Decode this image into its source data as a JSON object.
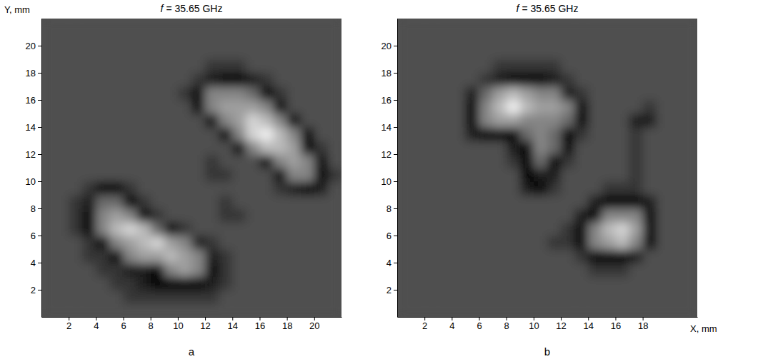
{
  "chart_data": [
    {
      "type": "heatmap",
      "title": "f = 35.65 GHz",
      "y_label": "Y, mm",
      "annotations": [
        "a"
      ],
      "xlim": [
        0,
        22
      ],
      "ylim": [
        0,
        22
      ],
      "zlim": [
        0,
        9
      ],
      "xticks": [
        2,
        4,
        6,
        8,
        10,
        12,
        14,
        16,
        18,
        20
      ],
      "yticks": [
        2,
        4,
        6,
        8,
        10,
        12,
        14,
        16,
        18,
        20
      ],
      "x": [
        0.5,
        1.5,
        2.5,
        3.5,
        4.5,
        5.5,
        6.5,
        7.5,
        8.5,
        9.5,
        10.5,
        11.5,
        12.5,
        13.5,
        14.5,
        15.5,
        16.5,
        17.5,
        18.5,
        19.5,
        20.5,
        21.5
      ],
      "y": [
        0.5,
        1.5,
        2.5,
        3.5,
        4.5,
        5.5,
        6.5,
        7.5,
        8.5,
        9.5,
        10.5,
        11.5,
        12.5,
        13.5,
        14.5,
        15.5,
        16.5,
        17.5,
        18.5,
        19.5,
        20.5,
        21.5
      ],
      "z": [
        [
          3,
          3,
          3,
          3,
          3,
          3,
          3,
          3,
          3,
          3,
          3,
          3,
          3,
          3,
          3,
          3,
          3,
          3,
          3,
          3,
          3,
          3
        ],
        [
          3,
          3,
          3,
          3,
          3,
          3,
          2,
          2,
          2,
          2,
          2,
          2,
          2,
          3,
          3,
          3,
          3,
          3,
          3,
          3,
          3,
          3
        ],
        [
          3,
          3,
          3,
          3,
          3,
          2,
          2,
          1,
          0,
          0,
          0,
          0,
          1,
          2,
          3,
          3,
          3,
          3,
          3,
          3,
          3,
          3
        ],
        [
          3,
          3,
          3,
          3,
          2,
          2,
          1,
          1,
          0,
          5,
          6,
          5,
          0,
          2,
          3,
          3,
          3,
          3,
          3,
          3,
          3,
          3
        ],
        [
          3,
          3,
          3,
          2,
          2,
          0,
          5,
          6,
          6,
          7,
          6,
          5,
          1,
          2,
          3,
          3,
          3,
          3,
          3,
          3,
          3,
          3
        ],
        [
          3,
          3,
          3,
          2,
          0,
          5,
          6,
          7,
          8,
          6,
          5,
          1,
          2,
          3,
          3,
          3,
          3,
          3,
          3,
          3,
          3,
          3
        ],
        [
          3,
          3,
          2,
          0,
          5,
          7,
          8,
          7,
          4,
          0,
          2,
          3,
          3,
          3,
          3,
          3,
          3,
          3,
          3,
          3,
          3,
          3
        ],
        [
          3,
          3,
          2,
          0,
          5,
          6,
          5,
          0,
          2,
          3,
          3,
          3,
          3,
          2,
          2,
          3,
          3,
          3,
          3,
          3,
          3,
          3
        ],
        [
          3,
          3,
          2,
          1,
          4,
          4,
          0,
          2,
          3,
          3,
          3,
          3,
          3,
          2,
          3,
          3,
          3,
          3,
          3,
          3,
          3,
          3
        ],
        [
          3,
          3,
          3,
          2,
          0,
          0,
          2,
          3,
          3,
          3,
          3,
          3,
          3,
          3,
          3,
          3,
          3,
          2,
          1,
          0,
          1,
          3
        ],
        [
          3,
          3,
          3,
          3,
          3,
          3,
          3,
          3,
          3,
          3,
          3,
          3,
          2,
          2,
          3,
          3,
          3,
          0,
          5,
          5,
          0,
          2
        ],
        [
          3,
          3,
          3,
          3,
          3,
          3,
          3,
          3,
          3,
          3,
          3,
          3,
          2,
          3,
          3,
          3,
          0,
          5,
          6,
          5,
          0,
          3
        ],
        [
          3,
          3,
          3,
          3,
          3,
          3,
          3,
          3,
          3,
          3,
          3,
          3,
          3,
          3,
          0,
          5,
          7,
          7,
          6,
          0,
          2,
          3
        ],
        [
          3,
          3,
          3,
          3,
          3,
          3,
          3,
          3,
          3,
          3,
          3,
          3,
          3,
          0,
          5,
          8,
          9,
          7,
          5,
          0,
          3,
          3
        ],
        [
          3,
          3,
          3,
          3,
          3,
          3,
          3,
          3,
          3,
          3,
          3,
          3,
          0,
          5,
          6,
          8,
          7,
          5,
          0,
          3,
          3,
          3
        ],
        [
          3,
          3,
          3,
          3,
          3,
          3,
          3,
          3,
          3,
          3,
          3,
          0,
          5,
          6,
          6,
          6,
          5,
          0,
          3,
          3,
          3,
          3
        ],
        [
          3,
          3,
          3,
          3,
          3,
          3,
          3,
          3,
          3,
          3,
          2,
          0,
          5,
          5,
          5,
          4,
          0,
          2,
          3,
          3,
          3,
          3
        ],
        [
          3,
          3,
          3,
          3,
          3,
          3,
          3,
          3,
          3,
          3,
          3,
          2,
          1,
          0,
          0,
          1,
          2,
          3,
          3,
          3,
          3,
          3
        ],
        [
          3,
          3,
          3,
          3,
          3,
          3,
          3,
          3,
          3,
          3,
          3,
          3,
          2,
          2,
          2,
          3,
          3,
          3,
          3,
          3,
          3,
          3
        ],
        [
          3,
          3,
          3,
          3,
          3,
          3,
          3,
          3,
          3,
          3,
          3,
          3,
          3,
          3,
          3,
          3,
          3,
          3,
          3,
          3,
          3,
          3
        ],
        [
          3,
          3,
          3,
          3,
          3,
          3,
          3,
          3,
          3,
          3,
          3,
          3,
          3,
          3,
          3,
          3,
          3,
          3,
          3,
          3,
          3,
          3
        ],
        [
          3,
          3,
          3,
          3,
          3,
          3,
          3,
          3,
          3,
          3,
          3,
          3,
          3,
          3,
          3,
          3,
          3,
          3,
          3,
          3,
          3,
          3
        ]
      ]
    },
    {
      "type": "heatmap",
      "title": "f = 35.65 GHz",
      "x_label": "X, mm",
      "annotations": [
        "b"
      ],
      "xlim": [
        0,
        22
      ],
      "ylim": [
        0,
        22
      ],
      "zlim": [
        0,
        9
      ],
      "xticks": [
        2,
        4,
        6,
        8,
        10,
        12,
        14,
        16,
        18
      ],
      "yticks": [
        2,
        4,
        6,
        8,
        10,
        12,
        14,
        16,
        18,
        20
      ],
      "x": [
        0.5,
        1.5,
        2.5,
        3.5,
        4.5,
        5.5,
        6.5,
        7.5,
        8.5,
        9.5,
        10.5,
        11.5,
        12.5,
        13.5,
        14.5,
        15.5,
        16.5,
        17.5,
        18.5,
        19.5,
        20.5,
        21.5
      ],
      "y": [
        0.5,
        1.5,
        2.5,
        3.5,
        4.5,
        5.5,
        6.5,
        7.5,
        8.5,
        9.5,
        10.5,
        11.5,
        12.5,
        13.5,
        14.5,
        15.5,
        16.5,
        17.5,
        18.5,
        19.5,
        20.5,
        21.5
      ],
      "z": [
        [
          3,
          3,
          3,
          3,
          3,
          3,
          3,
          3,
          3,
          3,
          3,
          3,
          3,
          3,
          3,
          3,
          3,
          3,
          3,
          3,
          3,
          3
        ],
        [
          3,
          3,
          3,
          3,
          3,
          3,
          3,
          3,
          3,
          3,
          3,
          3,
          3,
          3,
          3,
          3,
          3,
          3,
          3,
          3,
          3,
          3
        ],
        [
          3,
          3,
          3,
          3,
          3,
          3,
          3,
          3,
          3,
          3,
          3,
          3,
          3,
          3,
          3,
          3,
          3,
          3,
          3,
          3,
          3,
          3
        ],
        [
          3,
          3,
          3,
          3,
          3,
          3,
          3,
          3,
          3,
          3,
          3,
          3,
          3,
          3,
          2,
          2,
          2,
          3,
          3,
          3,
          3,
          3
        ],
        [
          3,
          3,
          3,
          3,
          3,
          3,
          3,
          3,
          3,
          3,
          3,
          3,
          3,
          2,
          0,
          0,
          0,
          1,
          3,
          3,
          3,
          3
        ],
        [
          3,
          3,
          3,
          3,
          3,
          3,
          3,
          3,
          3,
          3,
          3,
          2,
          2,
          0,
          5,
          6,
          7,
          5,
          0,
          3,
          3,
          3
        ],
        [
          3,
          3,
          3,
          3,
          3,
          3,
          3,
          3,
          3,
          3,
          3,
          3,
          2,
          0,
          5,
          7,
          8,
          6,
          0,
          3,
          3,
          3
        ],
        [
          3,
          3,
          3,
          3,
          3,
          3,
          3,
          3,
          3,
          3,
          3,
          3,
          3,
          1,
          0,
          5,
          5,
          5,
          0,
          3,
          3,
          3
        ],
        [
          3,
          3,
          3,
          3,
          3,
          3,
          3,
          3,
          3,
          3,
          3,
          3,
          3,
          3,
          1,
          0,
          0,
          0,
          1,
          3,
          3,
          3
        ],
        [
          3,
          3,
          3,
          3,
          3,
          3,
          3,
          3,
          3,
          1,
          0,
          2,
          3,
          3,
          3,
          2,
          2,
          2,
          3,
          3,
          3,
          3
        ],
        [
          3,
          3,
          3,
          3,
          3,
          3,
          3,
          3,
          3,
          0,
          1,
          1,
          3,
          3,
          3,
          3,
          3,
          2,
          3,
          3,
          3,
          3
        ],
        [
          3,
          3,
          3,
          3,
          3,
          3,
          3,
          3,
          2,
          0,
          4,
          0,
          2,
          3,
          3,
          3,
          3,
          2,
          3,
          3,
          3,
          3
        ],
        [
          3,
          3,
          3,
          3,
          3,
          3,
          3,
          3,
          1,
          0,
          5,
          4,
          0,
          3,
          3,
          3,
          3,
          2,
          3,
          3,
          3,
          3
        ],
        [
          3,
          3,
          3,
          3,
          3,
          1,
          0,
          0,
          0,
          4,
          5,
          4,
          0,
          2,
          3,
          3,
          3,
          2,
          3,
          3,
          3,
          3
        ],
        [
          3,
          3,
          3,
          3,
          3,
          0,
          5,
          6,
          6,
          5,
          5,
          5,
          4,
          0,
          3,
          3,
          3,
          1,
          1,
          3,
          3,
          3
        ],
        [
          3,
          3,
          3,
          3,
          3,
          0,
          5,
          7,
          9,
          7,
          6,
          6,
          5,
          0,
          3,
          3,
          3,
          3,
          2,
          3,
          3,
          3
        ],
        [
          3,
          3,
          3,
          3,
          3,
          1,
          4,
          6,
          7,
          6,
          5,
          5,
          1,
          2,
          3,
          3,
          3,
          3,
          3,
          3,
          3,
          3
        ],
        [
          3,
          3,
          3,
          3,
          3,
          3,
          2,
          1,
          0,
          0,
          0,
          1,
          2,
          3,
          3,
          3,
          3,
          3,
          3,
          3,
          3,
          3
        ],
        [
          3,
          3,
          3,
          3,
          3,
          3,
          3,
          2,
          2,
          2,
          2,
          2,
          3,
          3,
          3,
          3,
          3,
          3,
          3,
          3,
          3,
          3
        ],
        [
          3,
          3,
          3,
          3,
          3,
          3,
          3,
          3,
          3,
          3,
          3,
          3,
          3,
          3,
          3,
          3,
          3,
          3,
          3,
          3,
          3,
          3
        ],
        [
          3,
          3,
          3,
          3,
          3,
          3,
          3,
          3,
          3,
          3,
          3,
          3,
          3,
          3,
          3,
          3,
          3,
          3,
          3,
          3,
          3,
          3
        ],
        [
          3,
          3,
          3,
          3,
          3,
          3,
          3,
          3,
          3,
          3,
          3,
          3,
          3,
          3,
          3,
          3,
          3,
          3,
          3,
          3,
          3,
          3
        ]
      ]
    }
  ]
}
